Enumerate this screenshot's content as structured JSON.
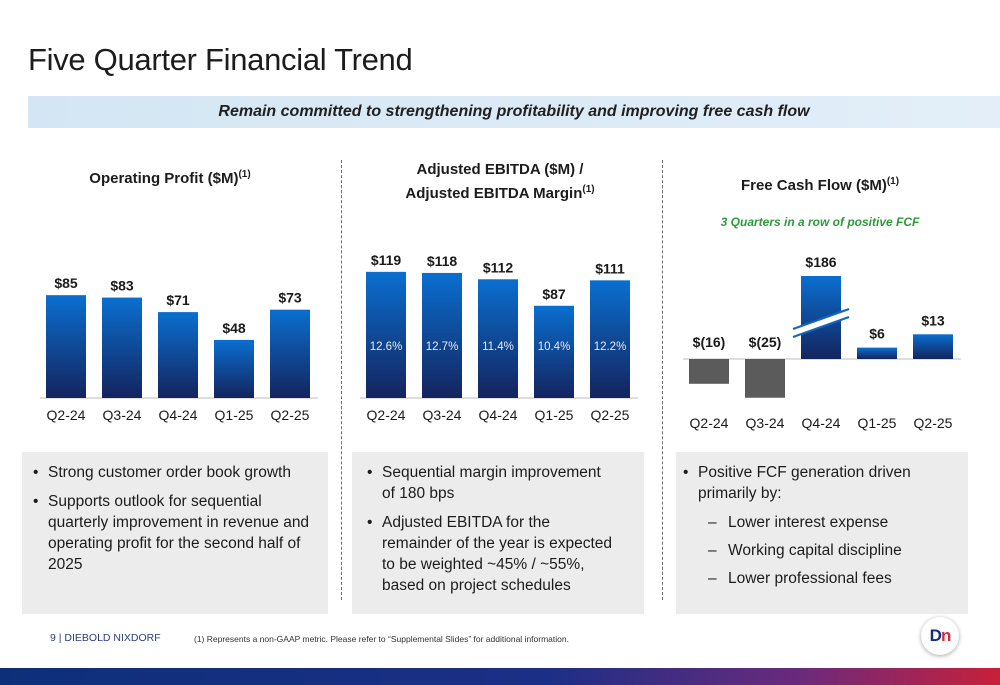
{
  "page": {
    "title": "Five Quarter Financial Trend",
    "banner": "Remain committed to strengthening profitability and improving free cash flow",
    "footer_brand": "9  |  DIEBOLD NIXDORF",
    "footnote": "(1)    Represents a non-GAAP metric. Please refer to “Supplemental Slides” for additional information.",
    "logo_text_a": "D",
    "logo_text_b": "n"
  },
  "chart_data": [
    {
      "type": "bar",
      "title": "Operating Profit ($M)",
      "title_sup": "(1)",
      "categories": [
        "Q2-24",
        "Q3-24",
        "Q4-24",
        "Q1-25",
        "Q2-25"
      ],
      "values": [
        85,
        83,
        71,
        48,
        73
      ],
      "data_labels": [
        "$85",
        "$83",
        "$71",
        "$48",
        "$73"
      ]
    },
    {
      "type": "bar",
      "title_line1": "Adjusted EBITDA ($M) /",
      "title_line2": "Adjusted EBITDA Margin",
      "title_sup": "(1)",
      "categories": [
        "Q2-24",
        "Q3-24",
        "Q4-24",
        "Q1-25",
        "Q2-25"
      ],
      "values": [
        119,
        118,
        112,
        87,
        111
      ],
      "data_labels": [
        "$119",
        "$118",
        "$112",
        "$87",
        "$111"
      ],
      "margins": [
        "12.6%",
        "12.7%",
        "11.4%",
        "10.4%",
        "12.2%"
      ]
    },
    {
      "type": "bar",
      "title": "Free Cash Flow ($M)",
      "title_sup": "(1)",
      "subtitle": "3 Quarters in a row of positive FCF",
      "categories": [
        "Q2-24",
        "Q3-24",
        "Q4-24",
        "Q1-25",
        "Q2-25"
      ],
      "values": [
        -16,
        -25,
        186,
        6,
        13
      ],
      "data_labels": [
        "$(16)",
        "$(25)",
        "$186",
        "$6",
        "$13"
      ],
      "axis_break_on": "Q4-24"
    }
  ],
  "boxes": [
    {
      "items": [
        {
          "kind": "b",
          "text": "Strong customer order book growth"
        },
        {
          "kind": "b",
          "text": "Supports outlook for sequential quarterly improvement in revenue and operating profit for the second half of 2025"
        }
      ]
    },
    {
      "items": [
        {
          "kind": "b",
          "text": "Sequential margin improvement of 180 bps"
        },
        {
          "kind": "b",
          "text": "Adjusted EBITDA for the remainder of the year is expected to be weighted ~45% / ~55%, based on project schedules"
        }
      ]
    },
    {
      "items": [
        {
          "kind": "b",
          "text": "Positive FCF generation driven primarily by:"
        },
        {
          "kind": "d",
          "text": "Lower interest expense"
        },
        {
          "kind": "d",
          "text": "Working capital discipline"
        },
        {
          "kind": "d",
          "text": "Lower professional fees"
        }
      ]
    }
  ],
  "colors": {
    "bar_gradient_top": "#0a6fd0",
    "bar_gradient_bottom": "#14245e",
    "negative_bar": "#5b5b5b",
    "accent_green": "#2e9a3c"
  }
}
